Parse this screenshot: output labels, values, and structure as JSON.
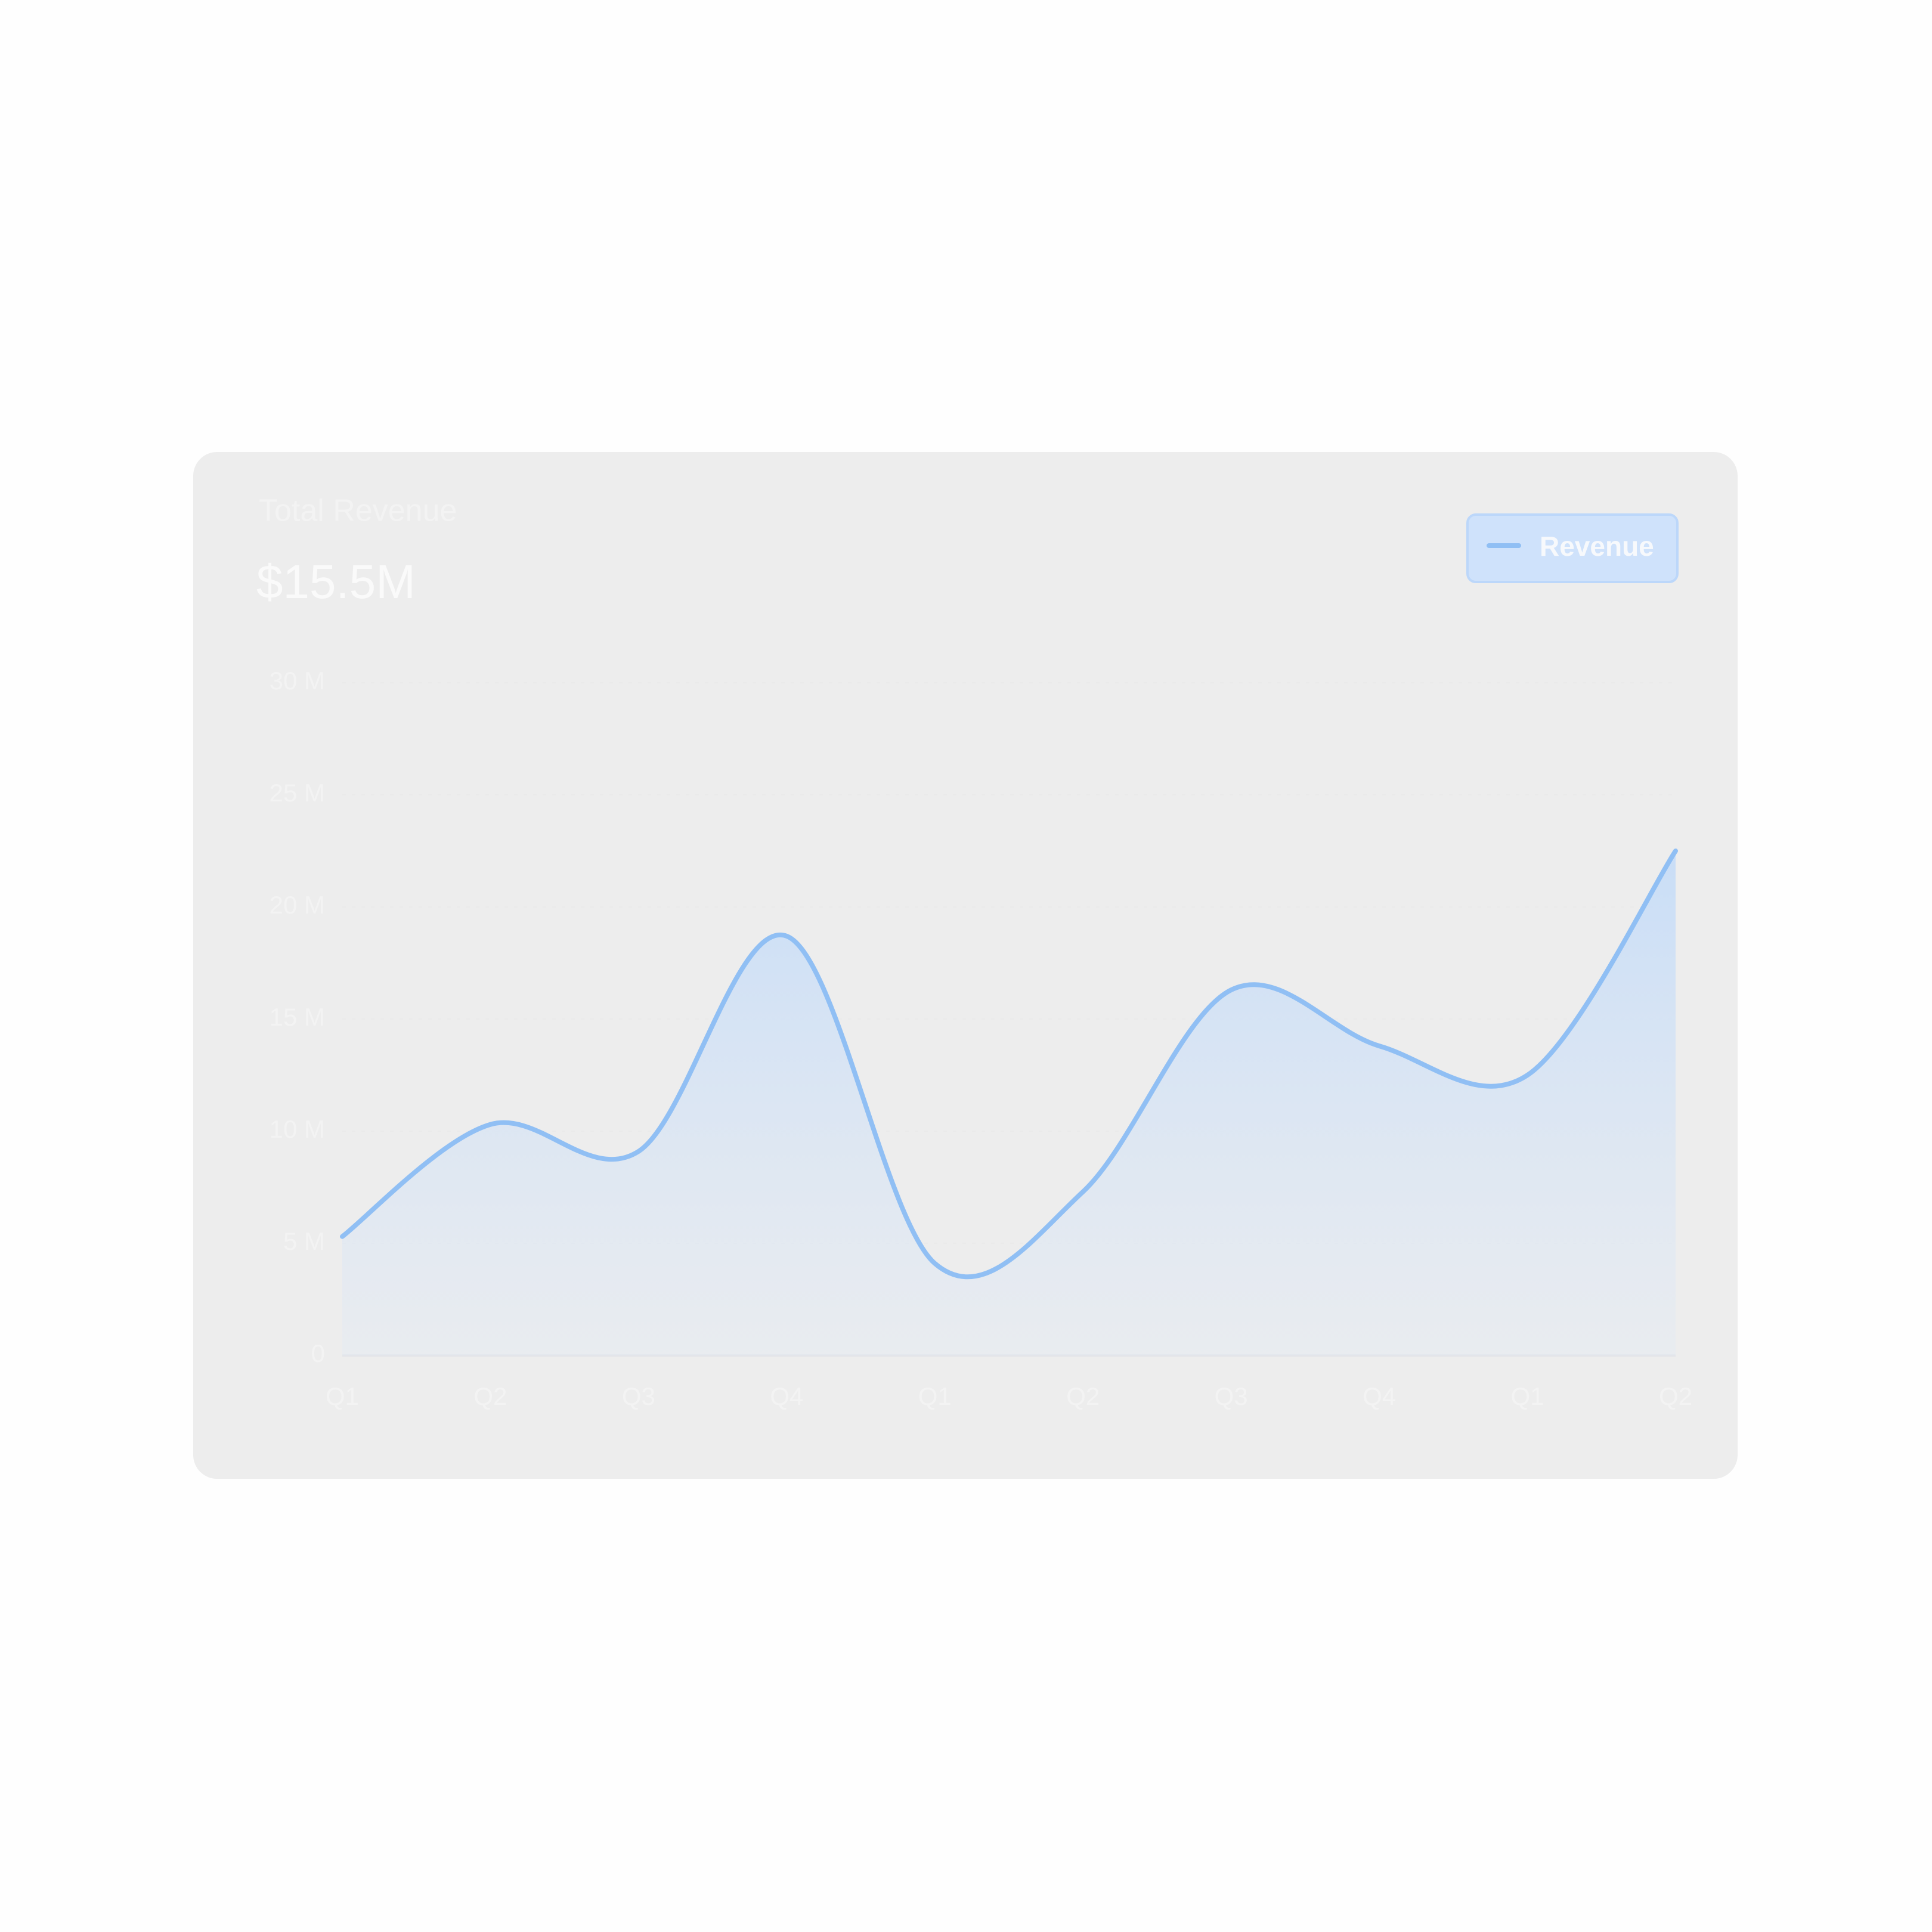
{
  "chart_data": {
    "type": "area",
    "title": "Total Revenue",
    "subtitle": "$15.5M",
    "categories": [
      "Q1",
      "Q2",
      "Q3",
      "Q4",
      "Q1",
      "Q2",
      "Q3",
      "Q4",
      "Q1",
      "Q2"
    ],
    "series": [
      {
        "name": "Revenue",
        "color": "#90bff4",
        "values": [
          5.3,
          10.3,
          9.1,
          18.7,
          4.1,
          7.3,
          16.3,
          13.8,
          12.5,
          22.5
        ]
      }
    ],
    "ylim": [
      0,
      30
    ],
    "yticks": [
      {
        "value": 0,
        "label": "0"
      },
      {
        "value": 5,
        "label": "5 M"
      },
      {
        "value": 10,
        "label": "10 M"
      },
      {
        "value": 15,
        "label": "15 M"
      },
      {
        "value": 20,
        "label": "20 M"
      },
      {
        "value": 25,
        "label": "25 M"
      },
      {
        "value": 30,
        "label": "30 M"
      }
    ],
    "grid": true,
    "legend": "top-right"
  }
}
